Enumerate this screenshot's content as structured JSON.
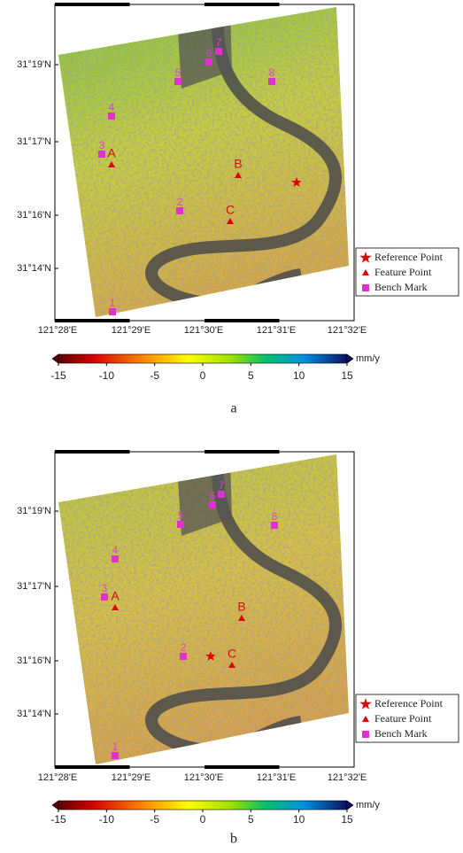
{
  "panels": [
    {
      "caption": "a",
      "lat_labels": [
        "31°19'N",
        "31°17'N",
        "31°16'N",
        "31°14'N"
      ],
      "lon_labels": [
        "121°28'E",
        "121°29'E",
        "121°30'E",
        "121°31'E",
        "121°32'E"
      ],
      "bench_marks": [
        "1",
        "2",
        "3",
        "4",
        "5",
        "6",
        "7",
        "8"
      ],
      "feature_points": [
        "A",
        "B",
        "C"
      ],
      "legend": [
        "Reference Point",
        "Feature Point",
        "Bench Mark"
      ],
      "colorbar": {
        "ticks": [
          -15,
          -10,
          -5,
          0,
          5,
          10,
          15
        ],
        "unit": "mm/y"
      }
    },
    {
      "caption": "b",
      "lat_labels": [
        "31°19'N",
        "31°17'N",
        "31°16'N",
        "31°14'N"
      ],
      "lon_labels": [
        "121°28'E",
        "121°29'E",
        "121°30'E",
        "121°31'E",
        "121°32'E"
      ],
      "bench_marks": [
        "1",
        "2",
        "3",
        "4",
        "5",
        "6",
        "7",
        "8"
      ],
      "feature_points": [
        "A",
        "B",
        "C"
      ],
      "legend": [
        "Reference Point",
        "Feature Point",
        "Bench Mark"
      ],
      "colorbar": {
        "ticks": [
          -15,
          -10,
          -5,
          0,
          5,
          10,
          15
        ],
        "unit": "mm/y"
      }
    }
  ]
}
